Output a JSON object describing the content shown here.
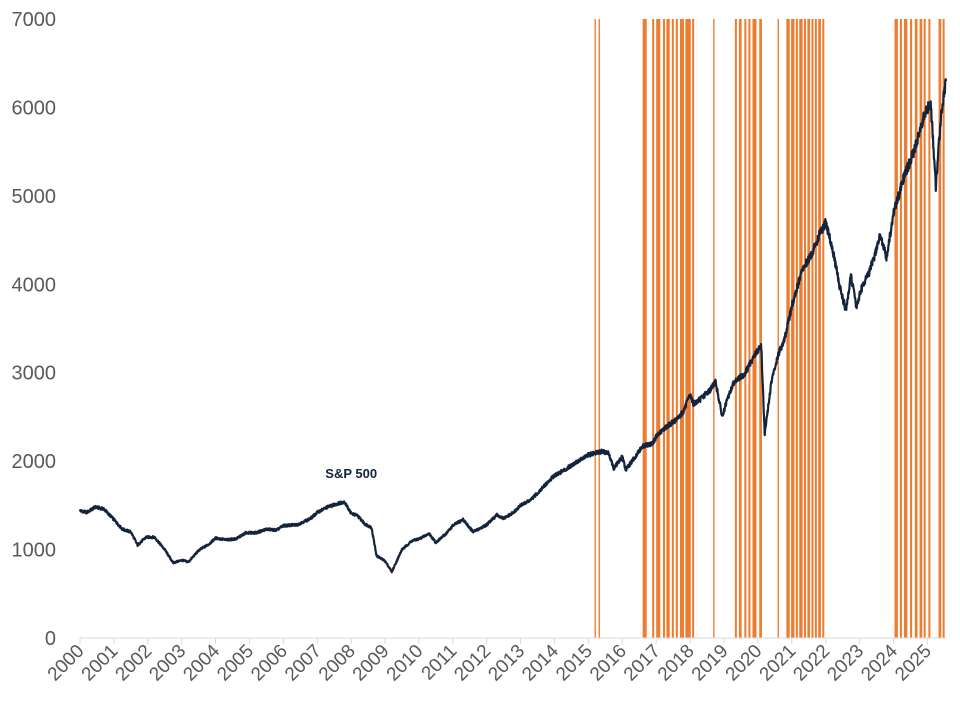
{
  "chart_data": {
    "type": "line",
    "title": "",
    "xlabel": "",
    "ylabel": "",
    "ylim": [
      0,
      7000
    ],
    "xlim": [
      2000.0,
      2025.55
    ],
    "y_ticks": [
      "0",
      "1000",
      "2000",
      "3000",
      "4000",
      "5000",
      "6000",
      "7000"
    ],
    "x_ticks": [
      "2000",
      "2001",
      "2002",
      "2003",
      "2004",
      "2005",
      "2006",
      "2007",
      "2008",
      "2009",
      "2010",
      "2011",
      "2012",
      "2013",
      "2014",
      "2015",
      "2016",
      "2017",
      "2018",
      "2019",
      "2020",
      "2021",
      "2022",
      "2023",
      "2024",
      "2025"
    ],
    "grid": false,
    "colors": {
      "line": "#14243d",
      "bands": "#ed7d31",
      "axis": "#d9d9d9",
      "text": "#595959"
    },
    "series": [
      {
        "name": "S&P 500",
        "x": [
          2000.0,
          2000.2,
          2000.45,
          2000.7,
          2001.0,
          2001.25,
          2001.5,
          2001.7,
          2001.95,
          2002.2,
          2002.5,
          2002.75,
          2003.0,
          2003.2,
          2003.5,
          2003.8,
          2004.0,
          2004.3,
          2004.6,
          2004.9,
          2005.2,
          2005.5,
          2005.8,
          2006.0,
          2006.4,
          2006.8,
          2007.0,
          2007.3,
          2007.6,
          2007.8,
          2008.0,
          2008.2,
          2008.4,
          2008.6,
          2008.75,
          2009.0,
          2009.2,
          2009.5,
          2009.8,
          2010.0,
          2010.3,
          2010.5,
          2010.8,
          2011.0,
          2011.3,
          2011.6,
          2011.8,
          2012.0,
          2012.3,
          2012.5,
          2012.8,
          2013.0,
          2013.3,
          2013.6,
          2014.0,
          2014.3,
          2014.6,
          2015.0,
          2015.4,
          2015.6,
          2015.75,
          2016.0,
          2016.1,
          2016.4,
          2016.6,
          2016.9,
          2017.0,
          2017.3,
          2017.6,
          2017.8,
          2018.0,
          2018.1,
          2018.3,
          2018.6,
          2018.75,
          2018.95,
          2019.1,
          2019.3,
          2019.6,
          2019.9,
          2020.1,
          2020.2,
          2020.4,
          2020.6,
          2020.8,
          2021.0,
          2021.3,
          2021.6,
          2021.8,
          2022.0,
          2022.2,
          2022.4,
          2022.6,
          2022.75,
          2022.9,
          2023.1,
          2023.3,
          2023.5,
          2023.6,
          2023.8,
          2024.0,
          2024.3,
          2024.6,
          2024.9,
          2025.1,
          2025.25,
          2025.4,
          2025.55
        ],
        "values": [
          1440,
          1420,
          1480,
          1460,
          1340,
          1230,
          1200,
          1050,
          1140,
          1140,
          1000,
          850,
          880,
          860,
          990,
          1060,
          1130,
          1110,
          1120,
          1190,
          1190,
          1230,
          1220,
          1270,
          1280,
          1350,
          1420,
          1480,
          1520,
          1540,
          1410,
          1380,
          1290,
          1250,
          930,
          870,
          750,
          1000,
          1100,
          1120,
          1180,
          1080,
          1180,
          1270,
          1340,
          1200,
          1240,
          1280,
          1390,
          1350,
          1420,
          1500,
          1560,
          1680,
          1840,
          1900,
          1980,
          2070,
          2110,
          2090,
          1920,
          2050,
          1900,
          2060,
          2170,
          2200,
          2280,
          2390,
          2470,
          2560,
          2750,
          2650,
          2700,
          2810,
          2900,
          2500,
          2700,
          2900,
          2980,
          3200,
          3300,
          2300,
          2900,
          3200,
          3400,
          3750,
          4150,
          4350,
          4550,
          4700,
          4400,
          4000,
          3700,
          4100,
          3750,
          4000,
          4150,
          4400,
          4550,
          4300,
          4800,
          5200,
          5500,
          5900,
          6050,
          5100,
          5900,
          6300
        ]
      }
    ],
    "band_ranges": [
      [
        2015.18,
        2015.22
      ],
      [
        2015.3,
        2015.34
      ],
      [
        2016.6,
        2016.72
      ],
      [
        2016.88,
        2016.94
      ],
      [
        2017.0,
        2017.12
      ],
      [
        2017.2,
        2017.26
      ],
      [
        2017.3,
        2017.4
      ],
      [
        2017.46,
        2017.52
      ],
      [
        2017.58,
        2017.64
      ],
      [
        2017.7,
        2017.82
      ],
      [
        2017.86,
        2018.02
      ],
      [
        2018.06,
        2018.12
      ],
      [
        2018.68,
        2018.72
      ],
      [
        2019.32,
        2019.38
      ],
      [
        2019.44,
        2019.52
      ],
      [
        2019.6,
        2019.66
      ],
      [
        2019.72,
        2019.78
      ],
      [
        2019.84,
        2019.96
      ],
      [
        2020.04,
        2020.12
      ],
      [
        2020.58,
        2020.62
      ],
      [
        2020.84,
        2020.94
      ],
      [
        2020.98,
        2021.08
      ],
      [
        2021.12,
        2021.18
      ],
      [
        2021.22,
        2021.32
      ],
      [
        2021.36,
        2021.42
      ],
      [
        2021.46,
        2021.54
      ],
      [
        2021.58,
        2021.64
      ],
      [
        2021.68,
        2021.74
      ],
      [
        2021.78,
        2021.86
      ],
      [
        2021.9,
        2021.96
      ],
      [
        2024.03,
        2024.13
      ],
      [
        2024.19,
        2024.25
      ],
      [
        2024.31,
        2024.41
      ],
      [
        2024.49,
        2024.55
      ],
      [
        2024.63,
        2024.71
      ],
      [
        2024.77,
        2024.85
      ],
      [
        2024.89,
        2024.95
      ],
      [
        2025.03,
        2025.09
      ],
      [
        2025.33,
        2025.41
      ],
      [
        2025.45,
        2025.51
      ]
    ],
    "annotations": [
      {
        "text": "S&P 500",
        "x": 2008.0,
        "y": 2000
      }
    ]
  }
}
